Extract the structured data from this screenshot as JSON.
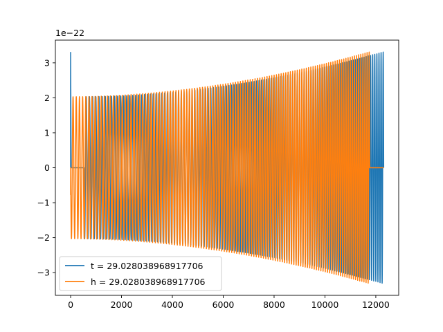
{
  "chart_data": {
    "type": "line",
    "title": "",
    "xlabel": "",
    "ylabel": "",
    "offset_label": "1e−22",
    "y_scale_exponent": -22,
    "xlim": [
      -600,
      12900
    ],
    "ylim": [
      -3.65,
      3.65
    ],
    "x_ticks": [
      0,
      2000,
      4000,
      6000,
      8000,
      10000,
      12000
    ],
    "x_tick_labels": [
      "0",
      "2000",
      "4000",
      "6000",
      "8000",
      "10000",
      "12000"
    ],
    "y_ticks": [
      -3,
      -2,
      -1,
      0,
      1,
      2,
      3
    ],
    "y_tick_labels": [
      "−3",
      "−2",
      "−1",
      "0",
      "1",
      "2",
      "3"
    ],
    "grid": false,
    "legend_position": "lower-left",
    "series": [
      {
        "name": "t = 29.028038968917706",
        "color": "#1f77b4",
        "zero_until": 520,
        "onset_spike": {
          "x": 0,
          "value": 3.3
        },
        "chirp_start": 520,
        "chirp_end": 12310,
        "amplitude_start": 2.03,
        "amplitude_end": 3.32,
        "cycles": 118
      },
      {
        "name": "h = 29.028038968917706",
        "color": "#ff7f0e",
        "chirp_start": 0,
        "chirp_end": 11760,
        "zero_after": 11760,
        "zero_until": 12310,
        "amplitude_start": 2.03,
        "amplitude_end": 3.32,
        "initial_value": -0.78,
        "cycles": 118
      }
    ]
  }
}
